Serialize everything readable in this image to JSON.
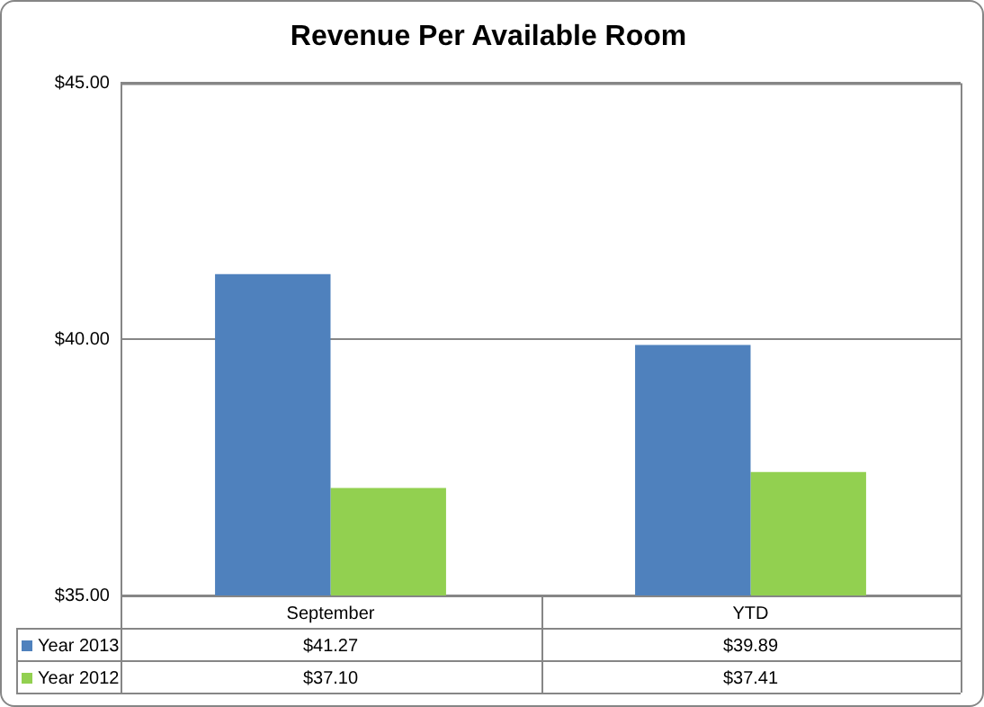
{
  "chart_data": {
    "type": "bar",
    "title": "Revenue Per Available Room",
    "categories": [
      "September",
      "YTD"
    ],
    "series": [
      {
        "name": "Year 2013",
        "color": "#4f81bd",
        "values": [
          41.27,
          39.89
        ],
        "value_labels": [
          "$41.27",
          "$39.89"
        ]
      },
      {
        "name": "Year 2012",
        "color": "#92d050",
        "values": [
          37.1,
          37.41
        ],
        "value_labels": [
          "$37.10",
          "$37.41"
        ]
      }
    ],
    "ylim": [
      35,
      45
    ],
    "yticks": [
      {
        "value": 35,
        "label": "$35.00"
      },
      {
        "value": 40,
        "label": "$40.00"
      },
      {
        "value": 45,
        "label": "$45.00"
      }
    ],
    "grid": "y",
    "legend": "bottom"
  }
}
